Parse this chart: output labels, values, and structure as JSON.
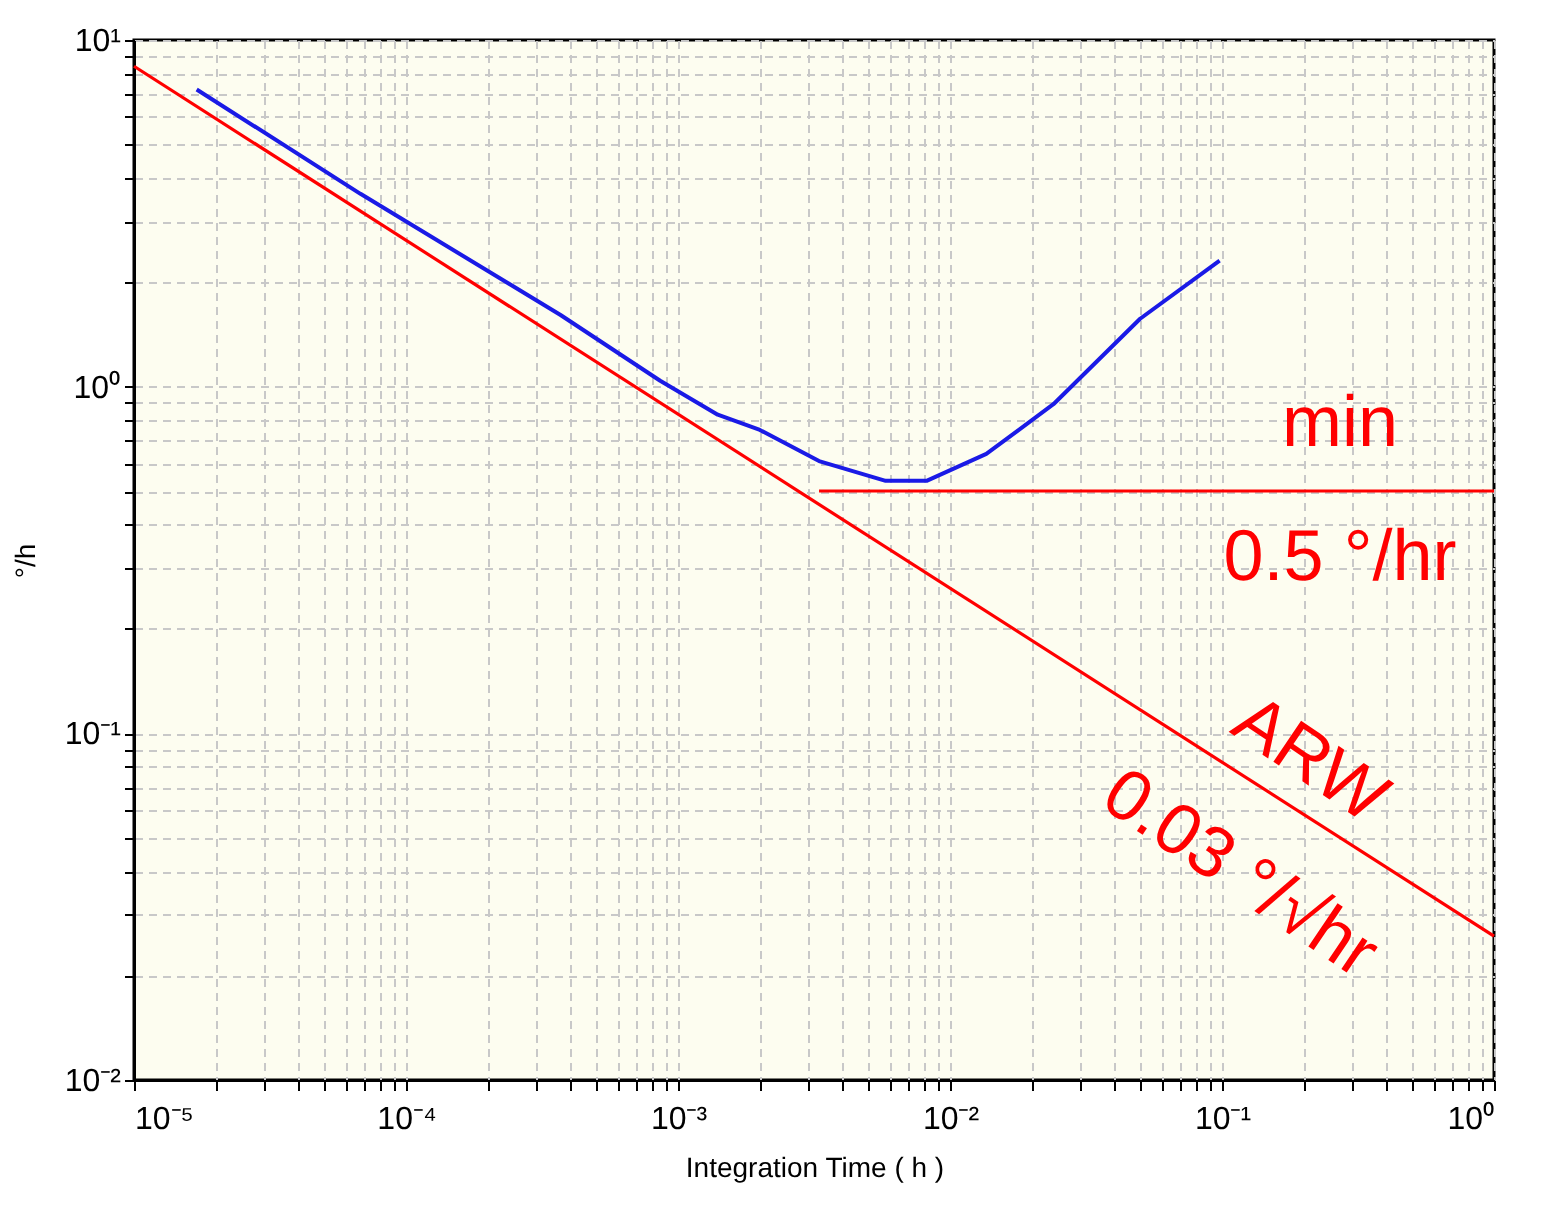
{
  "chart_data": {
    "type": "line",
    "xlabel": "Integration Time  ( h )",
    "ylabel": "°/h",
    "log": "xy",
    "grid": true,
    "marker": "none",
    "line_style": "solid",
    "xlim": [
      1e-05,
      1
    ],
    "ylim": [
      0.01,
      10
    ],
    "xticks": [
      {
        "value": 1e-05,
        "label": "10⁻⁵"
      },
      {
        "value": 2e-05,
        "label": null
      },
      {
        "value": 3e-05,
        "label": null
      },
      {
        "value": 4e-05,
        "label": null
      },
      {
        "value": 5e-05,
        "label": null
      },
      {
        "value": 6e-05,
        "label": null
      },
      {
        "value": 7e-05,
        "label": null
      },
      {
        "value": 8e-05,
        "label": null
      },
      {
        "value": 9e-05,
        "label": null
      },
      {
        "value": 0.0001,
        "label": "10⁻⁴"
      },
      {
        "value": 0.0002,
        "label": null
      },
      {
        "value": 0.0003,
        "label": null
      },
      {
        "value": 0.0004,
        "label": null
      },
      {
        "value": 0.0005,
        "label": null
      },
      {
        "value": 0.0006,
        "label": null
      },
      {
        "value": 0.0007,
        "label": null
      },
      {
        "value": 0.0008,
        "label": null
      },
      {
        "value": 0.0009,
        "label": null
      },
      {
        "value": 0.001,
        "label": "10⁻³"
      },
      {
        "value": 0.002,
        "label": null
      },
      {
        "value": 0.003,
        "label": null
      },
      {
        "value": 0.004,
        "label": null
      },
      {
        "value": 0.005,
        "label": null
      },
      {
        "value": 0.006,
        "label": null
      },
      {
        "value": 0.007,
        "label": null
      },
      {
        "value": 0.008,
        "label": null
      },
      {
        "value": 0.009,
        "label": null
      },
      {
        "value": 0.01,
        "label": "10⁻²"
      },
      {
        "value": 0.02,
        "label": null
      },
      {
        "value": 0.03,
        "label": null
      },
      {
        "value": 0.04,
        "label": null
      },
      {
        "value": 0.05,
        "label": null
      },
      {
        "value": 0.06,
        "label": null
      },
      {
        "value": 0.07,
        "label": null
      },
      {
        "value": 0.08,
        "label": null
      },
      {
        "value": 0.09,
        "label": null
      },
      {
        "value": 0.1,
        "label": "10⁻¹"
      },
      {
        "value": 0.2,
        "label": null
      },
      {
        "value": 0.3,
        "label": null
      },
      {
        "value": 0.4,
        "label": null
      },
      {
        "value": 0.5,
        "label": null
      },
      {
        "value": 0.6,
        "label": null
      },
      {
        "value": 0.7,
        "label": null
      },
      {
        "value": 0.8,
        "label": null
      },
      {
        "value": 0.9,
        "label": null
      },
      {
        "value": 1,
        "label": "10⁰"
      }
    ],
    "yticks": [
      {
        "value": 0.01,
        "label": "10⁻²"
      },
      {
        "value": 0.02,
        "label": null
      },
      {
        "value": 0.03,
        "label": null
      },
      {
        "value": 0.04,
        "label": null
      },
      {
        "value": 0.05,
        "label": null
      },
      {
        "value": 0.06,
        "label": null
      },
      {
        "value": 0.07,
        "label": null
      },
      {
        "value": 0.08,
        "label": null
      },
      {
        "value": 0.09,
        "label": null
      },
      {
        "value": 0.1,
        "label": "10⁻¹"
      },
      {
        "value": 0.2,
        "label": null
      },
      {
        "value": 0.3,
        "label": null
      },
      {
        "value": 0.4,
        "label": null
      },
      {
        "value": 0.5,
        "label": null
      },
      {
        "value": 0.6,
        "label": null
      },
      {
        "value": 0.7,
        "label": null
      },
      {
        "value": 0.8,
        "label": null
      },
      {
        "value": 0.9,
        "label": null
      },
      {
        "value": 1,
        "label": "10⁰"
      },
      {
        "value": 2,
        "label": null
      },
      {
        "value": 3,
        "label": null
      },
      {
        "value": 4,
        "label": null
      },
      {
        "value": 5,
        "label": null
      },
      {
        "value": 6,
        "label": null
      },
      {
        "value": 7,
        "label": null
      },
      {
        "value": 8,
        "label": null
      },
      {
        "value": 9,
        "label": null
      },
      {
        "value": 10,
        "label": "10¹"
      }
    ],
    "series": [
      {
        "color": "#1a1ae6",
        "x": [
          1.7e-05,
          6.8e-05,
          0.00037,
          0.00086,
          0.0014,
          0.002,
          0.0033,
          0.0058,
          0.0082,
          0.0136,
          0.024,
          0.05,
          0.098
        ],
        "values": [
          7.2,
          3.6,
          1.61,
          1.04,
          0.83,
          0.75,
          0.61,
          0.535,
          0.535,
          0.64,
          0.89,
          1.57,
          2.31
        ]
      },
      {
        "color": "#ff0000",
        "x": [
          1e-05,
          1
        ],
        "values": [
          8.4,
          0.026
        ]
      },
      {
        "color": "#ff0000",
        "x": [
          0.0033,
          1
        ],
        "values": [
          0.5,
          0.5
        ]
      }
    ],
    "annotations": [
      "min",
      "0.5 °/hr",
      "ARW",
      "0.03 °/√hr"
    ]
  }
}
